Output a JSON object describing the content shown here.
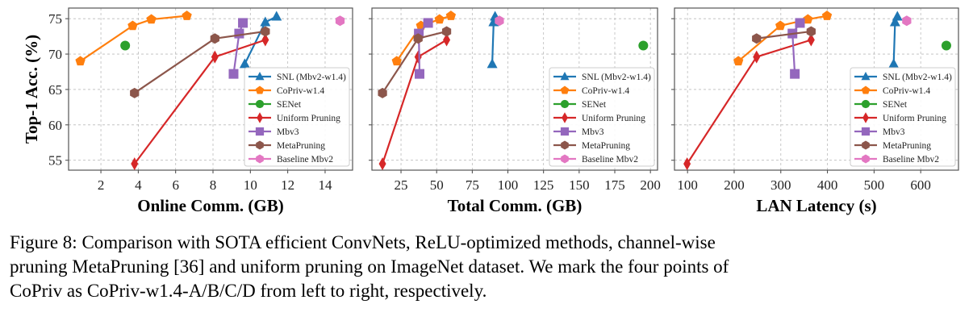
{
  "ylabel": "Top-1 Acc. (%)",
  "legend": [
    "SNL (Mbv2-w1.4)",
    "CoPriv-w1.4",
    "SENet",
    "Uniform Pruning",
    "Mbv3",
    "MetaPruning",
    "Baseline Mbv2"
  ],
  "colors": [
    "#1f77b4",
    "#ff7f0e",
    "#2ca02c",
    "#d62728",
    "#9467bd",
    "#8c564b",
    "#e377c2"
  ],
  "markers": [
    "triangle",
    "pentagon",
    "circle",
    "thin-diamond",
    "square",
    "hexagon",
    "hexagon"
  ],
  "caption": [
    "Figure 8: Comparison with SOTA efficient ConvNets, ReLU-optimized methods, channel-wise",
    "pruning MetaPruning [36] and uniform pruning on ImageNet dataset. We mark the four points of",
    "CoPriv as CoPriv-w1.4-A/B/C/D from left to right, respectively."
  ],
  "chart_data": [
    {
      "type": "line",
      "xlabel": "Online Comm. (GB)",
      "ylabel": "Top-1 Acc. (%)",
      "xlim": [
        0.27,
        15.47
      ],
      "ylim": [
        53.6,
        76.5
      ],
      "xticks": [
        2,
        4,
        6,
        8,
        10,
        12,
        14
      ],
      "yticks": [
        55,
        60,
        65,
        70,
        75
      ],
      "grid": true,
      "legend_position": "lower-right",
      "show_yticklabels": true,
      "series": [
        {
          "name": "SNL (Mbv2-w1.4)",
          "x": [
            9.7,
            10.8,
            11.4
          ],
          "y": [
            68.6,
            74.5,
            75.3
          ]
        },
        {
          "name": "CoPriv-w1.4",
          "x": [
            0.9,
            3.7,
            4.7,
            6.6
          ],
          "y": [
            69.0,
            74.0,
            74.9,
            75.4
          ]
        },
        {
          "name": "SENet",
          "x": [
            3.3
          ],
          "y": [
            71.2
          ]
        },
        {
          "name": "Uniform Pruning",
          "x": [
            3.8,
            8.1,
            10.8
          ],
          "y": [
            54.5,
            69.6,
            72.0
          ]
        },
        {
          "name": "Mbv3",
          "x": [
            9.1,
            9.4,
            9.6
          ],
          "y": [
            67.2,
            72.9,
            74.4
          ]
        },
        {
          "name": "MetaPruning",
          "x": [
            3.8,
            8.1,
            10.8
          ],
          "y": [
            64.5,
            72.2,
            73.2
          ]
        },
        {
          "name": "Baseline Mbv2",
          "x": [
            14.8
          ],
          "y": [
            74.7
          ]
        }
      ]
    },
    {
      "type": "line",
      "xlabel": "Total Comm. (GB)",
      "ylabel": "",
      "xlim": [
        4.6,
        205
      ],
      "ylim": [
        53.6,
        76.5
      ],
      "xticks": [
        25,
        50,
        75,
        100,
        125,
        150,
        175,
        200
      ],
      "yticks": [
        55,
        60,
        65,
        70,
        75
      ],
      "grid": true,
      "legend_position": "lower-right",
      "show_yticklabels": false,
      "series": [
        {
          "name": "SNL (Mbv2-w1.4)",
          "x": [
            89,
            90,
            91
          ],
          "y": [
            68.6,
            74.5,
            75.3
          ]
        },
        {
          "name": "CoPriv-w1.4",
          "x": [
            22,
            39,
            52,
            60
          ],
          "y": [
            69.0,
            74.0,
            74.9,
            75.4
          ]
        },
        {
          "name": "SENet",
          "x": [
            195
          ],
          "y": [
            71.2
          ]
        },
        {
          "name": "Uniform Pruning",
          "x": [
            12,
            37,
            57
          ],
          "y": [
            54.5,
            69.6,
            72.0
          ]
        },
        {
          "name": "Mbv3",
          "x": [
            38,
            37.5,
            44
          ],
          "y": [
            67.2,
            72.9,
            74.4
          ]
        },
        {
          "name": "MetaPruning",
          "x": [
            12,
            37,
            57
          ],
          "y": [
            64.5,
            72.2,
            73.2
          ]
        },
        {
          "name": "Baseline Mbv2",
          "x": [
            94
          ],
          "y": [
            74.7
          ]
        }
      ]
    },
    {
      "type": "line",
      "xlabel": "LAN Latency (s)",
      "ylabel": "",
      "xlim": [
        72,
        681
      ],
      "ylim": [
        53.6,
        76.5
      ],
      "xticks": [
        100,
        200,
        300,
        400,
        500,
        600
      ],
      "yticks": [
        55,
        60,
        65,
        70,
        75
      ],
      "grid": true,
      "legend_position": "lower-right",
      "show_yticklabels": false,
      "series": [
        {
          "name": "SNL (Mbv2-w1.4)",
          "x": [
            542,
            545,
            550
          ],
          "y": [
            68.6,
            74.5,
            75.3
          ]
        },
        {
          "name": "CoPriv-w1.4",
          "x": [
            209,
            299,
            358,
            399
          ],
          "y": [
            69.0,
            74.0,
            74.9,
            75.4
          ]
        },
        {
          "name": "SENet",
          "x": [
            655
          ],
          "y": [
            71.2
          ]
        },
        {
          "name": "Uniform Pruning",
          "x": [
            99,
            248,
            365
          ],
          "y": [
            54.5,
            69.6,
            72.0
          ]
        },
        {
          "name": "Mbv3",
          "x": [
            330,
            325,
            341
          ],
          "y": [
            67.2,
            72.9,
            74.4
          ]
        },
        {
          "name": "MetaPruning",
          "x": [
            248,
            365
          ],
          "y": [
            72.2,
            73.2
          ]
        },
        {
          "name": "Baseline Mbv2",
          "x": [
            570
          ],
          "y": [
            74.7
          ]
        }
      ]
    }
  ]
}
